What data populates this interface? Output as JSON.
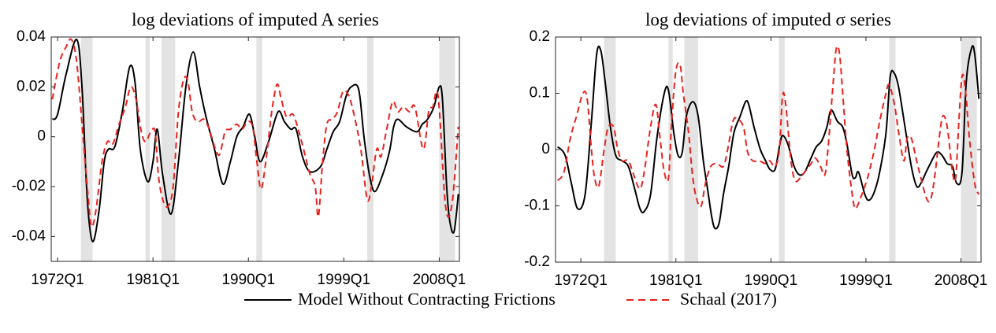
{
  "chart_data": [
    {
      "type": "line",
      "title": "log deviations of imputed A series",
      "xlim": [
        1971.4,
        2009.9
      ],
      "xticks": [
        {
          "value": 1972,
          "label": "1972Q1"
        },
        {
          "value": 1981,
          "label": "1981Q1"
        },
        {
          "value": 1990,
          "label": "1990Q1"
        },
        {
          "value": 1999,
          "label": "1999Q1"
        },
        {
          "value": 2008,
          "label": "2008Q1"
        }
      ],
      "ylim": [
        -0.05,
        0.04
      ],
      "yticks": [
        0.04,
        0.02,
        0,
        -0.02,
        -0.04
      ],
      "shaded_periods": [
        [
          1974.2,
          1975.3
        ],
        [
          1980.3,
          1980.7
        ],
        [
          1981.8,
          1983.1
        ],
        [
          1990.75,
          1991.3
        ],
        [
          2001.2,
          2001.8
        ],
        [
          2008.0,
          2009.5
        ]
      ],
      "shade_color": "#e3e3e3",
      "series": [
        {
          "name": "Model Without Contracting Frictions",
          "color": "#000000",
          "line_style": "solid",
          "x": [
            1971.5,
            1972,
            1972.8,
            1973.8,
            1974.3,
            1974.8,
            1975.3,
            1975.9,
            1976.4,
            1976.8,
            1977.4,
            1978.1,
            1978.8,
            1979.3,
            1979.8,
            1980.5,
            1981.0,
            1981.4,
            1981.9,
            1982.7,
            1983.4,
            1984.1,
            1984.8,
            1985.4,
            1986.0,
            1986.8,
            1987.6,
            1988.3,
            1988.9,
            1989.5,
            1990.1,
            1990.6,
            1991.1,
            1991.9,
            1992.8,
            1993.4,
            1994.0,
            1994.5,
            1995.1,
            1995.8,
            1996.8,
            1997.4,
            1998.0,
            1998.6,
            1999.2,
            1999.7,
            2000.4,
            2000.9,
            2001.4,
            2001.9,
            2002.6,
            2003.3,
            2003.7,
            2004.1,
            2004.9,
            2005.9,
            2006.4,
            2006.9,
            2007.5,
            2008.0,
            2008.3,
            2008.7,
            2009.0,
            2009.4,
            2009.8
          ],
          "values": [
            0.007,
            0.009,
            0.025,
            0.039,
            0.02,
            -0.025,
            -0.042,
            -0.03,
            -0.01,
            -0.005,
            -0.004,
            0.01,
            0.028,
            0.022,
            -0.005,
            -0.018,
            -0.01,
            0.003,
            -0.015,
            -0.031,
            -0.01,
            0.02,
            0.034,
            0.02,
            0.008,
            -0.005,
            -0.019,
            -0.01,
            0.0,
            0.004,
            0.009,
            0.0,
            -0.01,
            -0.002,
            0.01,
            0.006,
            0.003,
            0.003,
            -0.008,
            -0.014,
            -0.012,
            -0.005,
            0.002,
            0.006,
            0.016,
            0.02,
            0.019,
            0.0,
            -0.015,
            -0.022,
            -0.016,
            -0.006,
            0.004,
            0.007,
            0.004,
            0.002,
            0.005,
            0.007,
            0.012,
            0.02,
            0.015,
            -0.02,
            -0.034,
            -0.038,
            -0.023
          ]
        },
        {
          "name": "Schaal (2017)",
          "color": "#e8231f",
          "line_style": "dashed",
          "x": [
            1971.5,
            1972.2,
            1972.8,
            1973.3,
            1973.8,
            1974.4,
            1974.9,
            1975.2,
            1975.6,
            1976.2,
            1976.7,
            1977.2,
            1977.8,
            1978.4,
            1978.9,
            1979.4,
            1979.9,
            1980.3,
            1980.8,
            1981.2,
            1981.5,
            1981.9,
            1982.4,
            1982.9,
            1983.4,
            1983.9,
            1984.3,
            1984.7,
            1985.2,
            1985.8,
            1986.3,
            1986.9,
            1987.3,
            1987.8,
            1988.3,
            1988.9,
            1989.4,
            1989.9,
            1990.4,
            1990.8,
            1991.2,
            1991.7,
            1992.2,
            1992.7,
            1993.1,
            1993.6,
            1994.2,
            1994.7,
            1995.2,
            1995.8,
            1996.3,
            1996.6,
            1997.0,
            1997.4,
            1997.9,
            1998.4,
            1998.9,
            1999.4,
            1999.9,
            2000.6,
            2001.2,
            2001.6,
            2002.1,
            2002.5,
            2003.0,
            2003.6,
            2004.1,
            2004.6,
            2005.2,
            2005.7,
            2006.5,
            2007.0,
            2007.4,
            2007.9,
            2008.6,
            2009.2,
            2009.8
          ],
          "values": [
            0.015,
            0.03,
            0.036,
            0.039,
            0.03,
            0.0,
            -0.025,
            -0.036,
            -0.03,
            -0.01,
            -0.002,
            -0.003,
            0.005,
            0.012,
            0.02,
            0.015,
            0.002,
            -0.002,
            0.002,
            0.002,
            -0.015,
            -0.025,
            -0.028,
            -0.02,
            0.01,
            0.023,
            0.022,
            0.01,
            0.006,
            0.007,
            0.003,
            -0.005,
            -0.007,
            0.002,
            0.003,
            0.005,
            0.003,
            0.006,
            0.004,
            -0.01,
            -0.021,
            -0.008,
            0.01,
            0.021,
            0.015,
            0.008,
            0.009,
            0.003,
            -0.005,
            -0.015,
            -0.02,
            -0.032,
            -0.01,
            0.005,
            0.007,
            0.01,
            0.018,
            0.017,
            0.01,
            -0.005,
            -0.025,
            -0.02,
            -0.005,
            -0.008,
            0.002,
            0.014,
            0.01,
            0.012,
            0.01,
            0.012,
            -0.005,
            0.01,
            0.012,
            0.016,
            -0.028,
            -0.027,
            0.004
          ]
        }
      ]
    },
    {
      "type": "line",
      "title": "log deviations of imputed σ series",
      "xlim": [
        1969.6,
        2009.9
      ],
      "xticks": [
        {
          "value": 1972,
          "label": "1972Q1"
        },
        {
          "value": 1981,
          "label": "1981Q1"
        },
        {
          "value": 1990,
          "label": "1990Q1"
        },
        {
          "value": 1999,
          "label": "1999Q1"
        },
        {
          "value": 2008,
          "label": "2008Q1"
        }
      ],
      "ylim": [
        -0.2,
        0.2
      ],
      "yticks": [
        0.2,
        0.1,
        0,
        -0.1,
        -0.2
      ],
      "shaded_periods": [
        [
          1974.2,
          1975.3
        ],
        [
          1980.3,
          1980.7
        ],
        [
          1981.8,
          1983.1
        ],
        [
          1990.75,
          1991.3
        ],
        [
          2001.2,
          2001.8
        ],
        [
          2008.0,
          2009.5
        ]
      ],
      "shade_color": "#e3e3e3",
      "series": [
        {
          "color": "#000000",
          "line_style": "solid",
          "x": [
            1969.8,
            1970.5,
            1971.1,
            1971.7,
            1972.4,
            1973.0,
            1973.5,
            1973.9,
            1974.3,
            1974.8,
            1975.3,
            1975.9,
            1976.5,
            1977.1,
            1977.6,
            1978.0,
            1978.6,
            1979.2,
            1979.9,
            1980.3,
            1980.8,
            1981.2,
            1981.6,
            1982.0,
            1982.6,
            1983.1,
            1983.6,
            1984.0,
            1984.4,
            1984.7,
            1985.1,
            1985.5,
            1986.0,
            1986.5,
            1987.1,
            1987.6,
            1987.9,
            1988.4,
            1989.0,
            1989.5,
            1989.9,
            1990.4,
            1990.8,
            1991.1,
            1991.6,
            1992.2,
            1992.7,
            1993.2,
            1993.8,
            1994.3,
            1994.8,
            1995.3,
            1995.7,
            1996.3,
            1996.8,
            1997.2,
            1997.7,
            1998.0,
            1998.3,
            1998.9,
            1999.3,
            1999.8,
            2000.3,
            2000.9,
            2001.3,
            2001.7,
            2002.1,
            2002.7,
            2003.3,
            2003.8,
            2004.2,
            2004.7,
            2005.1,
            2005.7,
            2006.2,
            2006.7,
            2007.2,
            2007.6,
            2008.1,
            2008.5,
            2009.0,
            2009.3,
            2009.7
          ],
          "values": [
            0.005,
            -0.01,
            -0.06,
            -0.105,
            -0.08,
            0.05,
            0.17,
            0.175,
            0.12,
            0.04,
            -0.01,
            -0.02,
            -0.03,
            -0.07,
            -0.105,
            -0.11,
            -0.08,
            0.02,
            0.1,
            0.105,
            0.03,
            -0.01,
            -0.005,
            0.06,
            0.085,
            0.06,
            -0.02,
            -0.07,
            -0.12,
            -0.14,
            -0.13,
            -0.08,
            -0.03,
            0.03,
            0.06,
            0.085,
            0.08,
            0.04,
            0.0,
            -0.02,
            -0.035,
            -0.035,
            0.005,
            0.025,
            0.01,
            -0.03,
            -0.045,
            -0.04,
            -0.015,
            0.005,
            0.015,
            0.04,
            0.07,
            0.05,
            0.04,
            0.01,
            -0.045,
            -0.05,
            -0.04,
            -0.08,
            -0.09,
            -0.075,
            -0.04,
            0.03,
            0.13,
            0.135,
            0.11,
            0.04,
            -0.03,
            -0.065,
            -0.06,
            -0.04,
            -0.025,
            -0.005,
            -0.01,
            -0.025,
            -0.03,
            -0.06,
            -0.04,
            0.12,
            0.18,
            0.17,
            0.09
          ]
        },
        {
          "color": "#e8231f",
          "line_style": "dashed",
          "x": [
            1969.8,
            1970.4,
            1971.0,
            1971.6,
            1972.2,
            1972.6,
            1973.0,
            1973.3,
            1973.7,
            1974.2,
            1974.6,
            1975.1,
            1975.5,
            1975.9,
            1976.5,
            1977.1,
            1977.6,
            1978.0,
            1978.6,
            1979.1,
            1979.5,
            1979.9,
            1980.3,
            1980.6,
            1981.0,
            1981.4,
            1981.7,
            1982.2,
            1982.6,
            1983.0,
            1983.4,
            1983.8,
            1984.3,
            1984.9,
            1985.5,
            1985.9,
            1986.4,
            1986.8,
            1987.4,
            1987.8,
            1988.3,
            1988.9,
            1989.5,
            1989.9,
            1990.4,
            1990.8,
            1991.1,
            1991.4,
            1991.9,
            1992.3,
            1992.8,
            1993.2,
            1993.8,
            1994.2,
            1994.7,
            1995.1,
            1995.4,
            1995.9,
            1996.2,
            1996.5,
            1996.8,
            1997.2,
            1997.7,
            1998.0,
            1998.4,
            1998.9,
            1999.3,
            1999.8,
            2000.3,
            2000.9,
            2001.2,
            2001.7,
            2002.1,
            2002.6,
            2002.9,
            2003.3,
            2003.8,
            2004.2,
            2004.7,
            2005.1,
            2005.5,
            2006.0,
            2006.3,
            2006.7,
            2007.2,
            2007.5,
            2007.8,
            2008.1,
            2008.4,
            2008.8,
            2009.3,
            2009.7
          ],
          "values": [
            -0.055,
            -0.04,
            0.02,
            0.06,
            0.1,
            0.09,
            0.0,
            -0.05,
            -0.065,
            0.0,
            0.04,
            0.04,
            0.0,
            -0.02,
            -0.02,
            -0.05,
            -0.07,
            -0.04,
            0.04,
            0.08,
            0.02,
            -0.04,
            -0.05,
            0.05,
            0.14,
            0.15,
            0.1,
            0.03,
            -0.05,
            -0.09,
            -0.1,
            -0.06,
            -0.03,
            -0.025,
            -0.03,
            0.0,
            0.05,
            0.055,
            0.04,
            -0.005,
            -0.02,
            -0.02,
            -0.025,
            -0.02,
            -0.03,
            0.0,
            0.095,
            0.08,
            -0.02,
            -0.055,
            -0.05,
            -0.04,
            -0.025,
            -0.015,
            -0.03,
            -0.045,
            0.0,
            0.12,
            0.18,
            0.17,
            0.1,
            0.0,
            -0.08,
            -0.105,
            -0.09,
            -0.065,
            -0.04,
            0.0,
            0.05,
            0.1,
            0.115,
            0.08,
            0.03,
            -0.02,
            0.02,
            0.02,
            -0.02,
            -0.05,
            -0.085,
            -0.09,
            -0.05,
            0.03,
            0.06,
            0.04,
            -0.04,
            -0.05,
            0.05,
            0.13,
            0.11,
            0.02,
            -0.06,
            -0.08
          ]
        }
      ]
    }
  ]
}
